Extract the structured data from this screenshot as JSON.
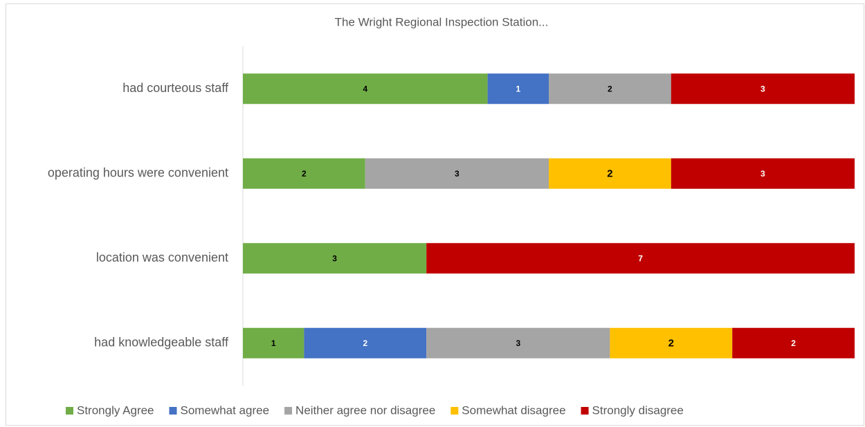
{
  "chart_data": {
    "type": "stacked_bar",
    "orientation": "horizontal",
    "title": "The Wright Regional Inspection Station...",
    "categories": [
      "had courteous staff",
      "operating hours were convenient",
      "location was convenient",
      "had knowledgeable staff"
    ],
    "series": [
      {
        "name": "Strongly Agree",
        "color": "#70ad47",
        "label_color": "#000000",
        "values": [
          4,
          2,
          3,
          1
        ]
      },
      {
        "name": "Somewhat agree",
        "color": "#4472c4",
        "label_color": "#ffffff",
        "values": [
          1,
          null,
          null,
          2
        ]
      },
      {
        "name": "Neither agree nor disagree",
        "color": "#a5a5a5",
        "label_color": "#000000",
        "values": [
          2,
          3,
          null,
          3
        ]
      },
      {
        "name": "Somewhat disagree",
        "color": "#ffc000",
        "label_color": "#000000",
        "values": [
          null,
          2,
          null,
          2
        ]
      },
      {
        "name": "Strongly disagree",
        "color": "#c00000",
        "label_color": "#ffffff",
        "values": [
          3,
          3,
          7,
          2
        ]
      }
    ],
    "xlim": [
      0,
      10
    ],
    "legend": "bottom"
  }
}
